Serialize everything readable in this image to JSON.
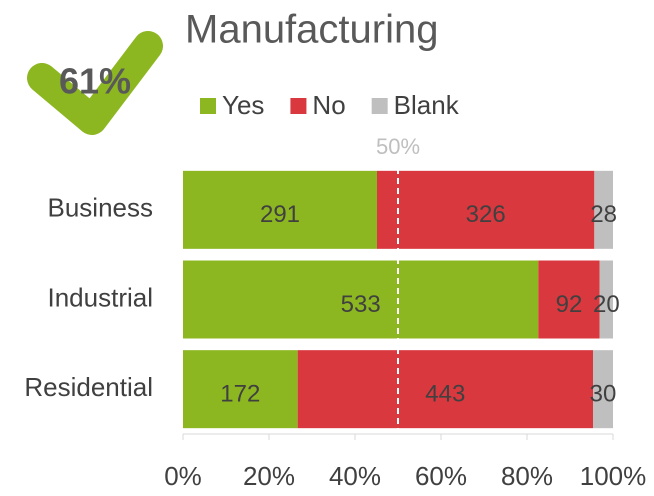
{
  "chart_data": {
    "type": "bar",
    "orientation": "horizontal",
    "stacked": "percent",
    "title": "Manufacturing",
    "badge": "61%",
    "categories": [
      "Business",
      "Industrial",
      "Residential"
    ],
    "series": [
      {
        "name": "Yes",
        "color": "#8cb721",
        "values": [
          291,
          533,
          172
        ]
      },
      {
        "name": "No",
        "color": "#d9383e",
        "values": [
          326,
          92,
          443
        ]
      },
      {
        "name": "Blank",
        "color": "#bfbfbf",
        "values": [
          28,
          20,
          30
        ]
      }
    ],
    "xlim": [
      0,
      100
    ],
    "xticks": [
      {
        "value": 0,
        "label": "0%"
      },
      {
        "value": 20,
        "label": "20%"
      },
      {
        "value": 40,
        "label": "40%"
      },
      {
        "value": 60,
        "label": "60%"
      },
      {
        "value": 80,
        "label": "80%"
      },
      {
        "value": 100,
        "label": "100%"
      }
    ],
    "reference_line": {
      "value": 50,
      "label": "50%"
    },
    "legend": "top"
  }
}
